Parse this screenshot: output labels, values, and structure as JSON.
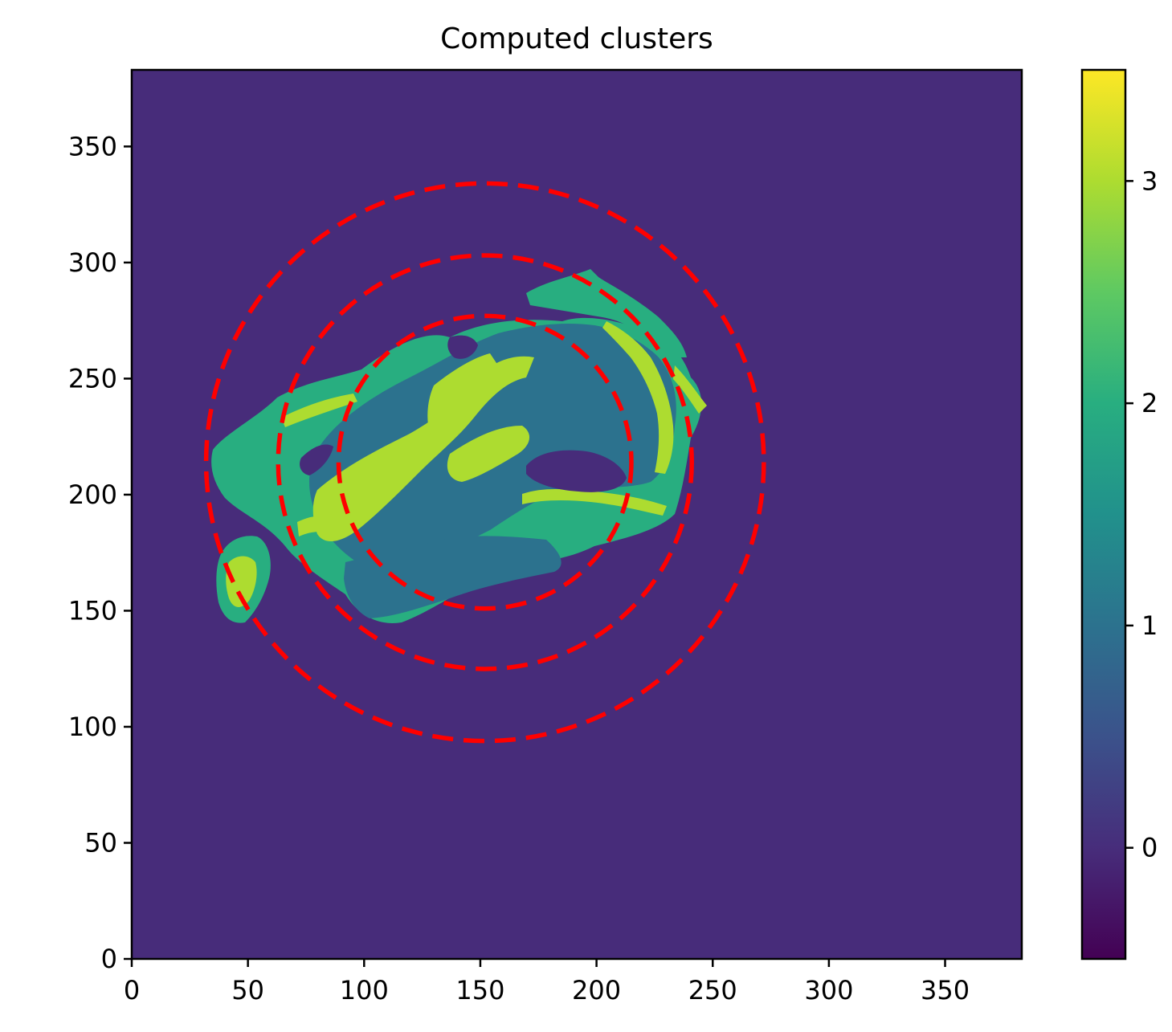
{
  "chart_data": {
    "type": "heatmap",
    "title": "Computed clusters",
    "xlabel": "",
    "ylabel": "",
    "xlim": [
      0,
      383
    ],
    "ylim": [
      0,
      383
    ],
    "origin": "lower",
    "x_ticks": [
      0,
      50,
      100,
      150,
      200,
      250,
      300,
      350
    ],
    "y_ticks": [
      0,
      50,
      100,
      150,
      200,
      250,
      300,
      350
    ],
    "colormap": "viridis",
    "colorbar": {
      "range": [
        -0.5,
        3.5
      ],
      "ticks": [
        0,
        1,
        2,
        3
      ],
      "placement": "right"
    },
    "grid": false,
    "clusters": [
      {
        "label": 0,
        "color": "#472c7a",
        "description_area": "background"
      },
      {
        "label": 1,
        "color": "#2c728e",
        "region_center": [
          160,
          235
        ]
      },
      {
        "label": 2,
        "color": "#28ae80",
        "region_center": [
          80,
          220
        ]
      },
      {
        "label": 3,
        "color": "#addc30",
        "region_center": [
          140,
          210
        ]
      }
    ],
    "circles": [
      {
        "center": [
          152,
          214
        ],
        "radius": 63,
        "style": "dashed",
        "color": "#ff0000"
      },
      {
        "center": [
          152,
          214
        ],
        "radius": 89,
        "style": "dashed",
        "color": "#ff0000"
      },
      {
        "center": [
          152,
          214
        ],
        "radius": 120,
        "style": "dashed",
        "color": "#ff0000"
      }
    ]
  }
}
